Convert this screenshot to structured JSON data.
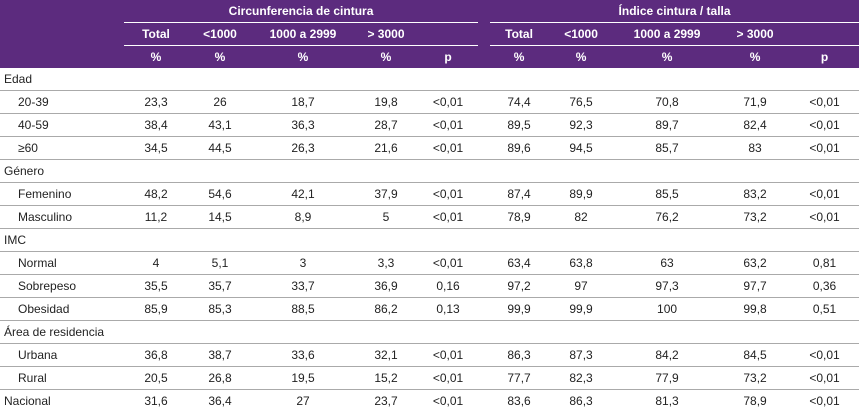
{
  "header": {
    "group1": "Circunferencia de cintura",
    "group2": "Índice cintura / talla",
    "columns": [
      "Total",
      "<1000",
      "1000 a 2999",
      "> 3000"
    ],
    "unit": "%",
    "p": "p"
  },
  "rows": [
    {
      "type": "section",
      "label": "Edad"
    },
    {
      "type": "sub",
      "label": "20-39",
      "cc": [
        "23,3",
        "26",
        "18,7",
        "19,8",
        "<0,01"
      ],
      "ict": [
        "74,4",
        "76,5",
        "70,8",
        "71,9",
        "<0,01"
      ]
    },
    {
      "type": "sub",
      "label": "40-59",
      "cc": [
        "38,4",
        "43,1",
        "36,3",
        "28,7",
        "<0,01"
      ],
      "ict": [
        "89,5",
        "92,3",
        "89,7",
        "82,4",
        "<0,01"
      ]
    },
    {
      "type": "sub",
      "label": "≥60",
      "cc": [
        "34,5",
        "44,5",
        "26,3",
        "21,6",
        "<0,01"
      ],
      "ict": [
        "89,6",
        "94,5",
        "85,7",
        "83",
        "<0,01"
      ]
    },
    {
      "type": "section",
      "label": "Género"
    },
    {
      "type": "sub",
      "label": "Femenino",
      "cc": [
        "48,2",
        "54,6",
        "42,1",
        "37,9",
        "<0,01"
      ],
      "ict": [
        "87,4",
        "89,9",
        "85,5",
        "83,2",
        "<0,01"
      ]
    },
    {
      "type": "sub",
      "label": "Masculino",
      "cc": [
        "11,2",
        "14,5",
        "8,9",
        "5",
        "<0,01"
      ],
      "ict": [
        "78,9",
        "82",
        "76,2",
        "73,2",
        "<0,01"
      ]
    },
    {
      "type": "section",
      "label": "IMC"
    },
    {
      "type": "sub",
      "label": "Normal",
      "cc": [
        "4",
        "5,1",
        "3",
        "3,3",
        "<0,01"
      ],
      "ict": [
        "63,4",
        "63,8",
        "63",
        "63,2",
        "0,81"
      ]
    },
    {
      "type": "sub",
      "label": "Sobrepeso",
      "cc": [
        "35,5",
        "35,7",
        "33,7",
        "36,9",
        "0,16"
      ],
      "ict": [
        "97,2",
        "97",
        "97,3",
        "97,7",
        "0,36"
      ]
    },
    {
      "type": "sub",
      "label": "Obesidad",
      "cc": [
        "85,9",
        "85,3",
        "88,5",
        "86,2",
        "0,13"
      ],
      "ict": [
        "99,9",
        "99,9",
        "100",
        "99,8",
        "0,51"
      ]
    },
    {
      "type": "section",
      "label": "Área de residencia"
    },
    {
      "type": "sub",
      "label": "Urbana",
      "cc": [
        "36,8",
        "38,7",
        "33,6",
        "32,1",
        "<0,01"
      ],
      "ict": [
        "86,3",
        "87,3",
        "84,2",
        "84,5",
        "<0,01"
      ]
    },
    {
      "type": "sub",
      "label": "Rural",
      "cc": [
        "20,5",
        "26,8",
        "19,5",
        "15,2",
        "<0,01"
      ],
      "ict": [
        "77,7",
        "82,3",
        "77,9",
        "73,2",
        "<0,01"
      ]
    },
    {
      "type": "total",
      "label": "Nacional",
      "cc": [
        "31,6",
        "36,4",
        "27",
        "23,7",
        "<0,01"
      ],
      "ict": [
        "83,6",
        "86,3",
        "81,3",
        "78,9",
        "<0,01"
      ]
    }
  ]
}
